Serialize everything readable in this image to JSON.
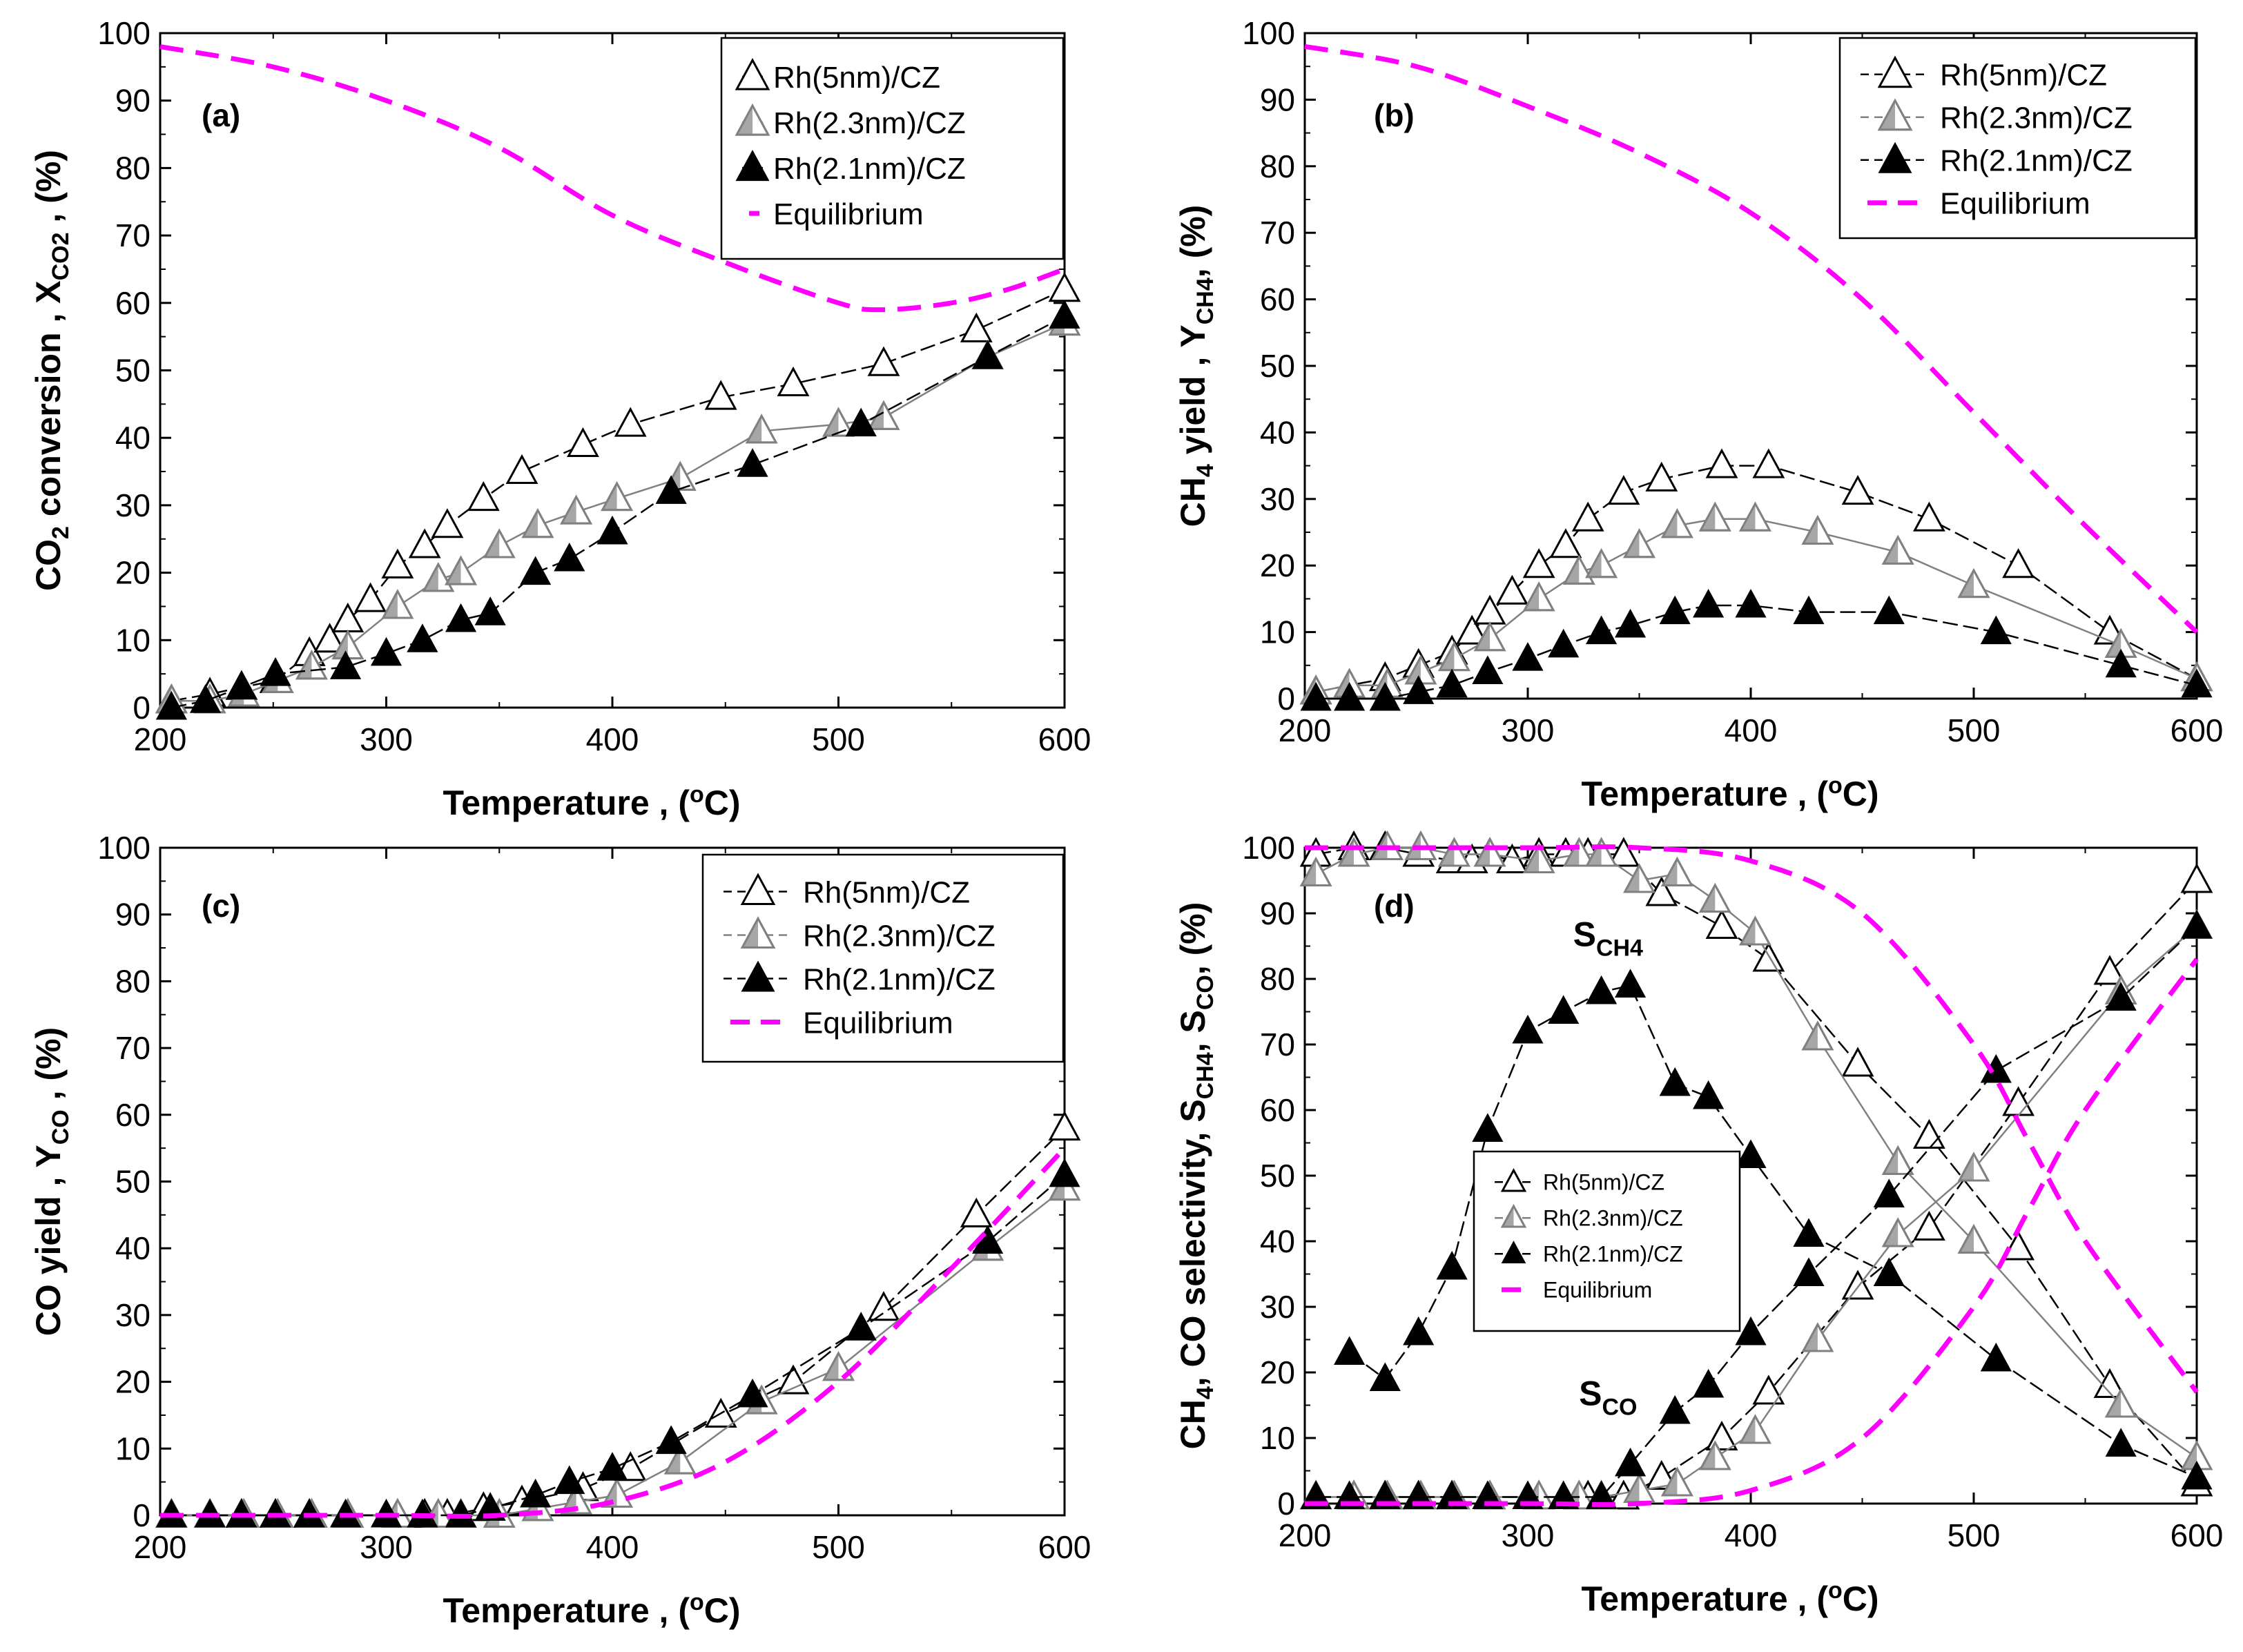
{
  "colors": {
    "equilibrium": "#ff00ff",
    "s5": "#000000",
    "s23": "#808080",
    "s21": "#000000"
  },
  "series_styles": [
    {
      "key": "rh5",
      "marker": "open-triangle",
      "line": "#000000"
    },
    {
      "key": "rh23",
      "marker": "half-triangle",
      "line": "#808080"
    },
    {
      "key": "rh21",
      "marker": "filled-triangle",
      "line": "#000000"
    },
    {
      "key": "eq",
      "marker": "none",
      "line": "#ff00ff"
    }
  ],
  "chart_data": [
    {
      "type": "line",
      "panel_label": "(a)",
      "title": "",
      "xlabel": "Temperature , (",
      "xlabel_unit": "C)",
      "ylabel_main": "CO",
      "ylabel_sub": "2",
      "ylabel_rest": " conversion , X",
      "ylabel_sub2": "CO2",
      "ylabel_end": " , (%)",
      "xlim": [
        200,
        600
      ],
      "ylim": [
        0,
        100
      ],
      "xticks": [
        "200",
        "300",
        "400",
        "500",
        "600"
      ],
      "yticks": [
        "0",
        "10",
        "20",
        "30",
        "40",
        "50",
        "60",
        "70",
        "80",
        "90",
        "100"
      ],
      "legend": [
        "Rh(5nm)/CZ",
        "Rh(2.3nm)/CZ",
        "Rh(2.1nm)/CZ",
        "Equilibrium"
      ],
      "legend_placement": "top-right",
      "series": [
        {
          "name": "Rh(5nm)/CZ",
          "x": [
            205,
            222,
            236,
            251,
            266,
            275,
            283,
            293,
            305,
            317,
            327,
            343,
            360,
            387,
            408,
            448,
            480,
            520,
            561,
            600
          ],
          "y": [
            1,
            2,
            3,
            4,
            8,
            10,
            13,
            16,
            21,
            24,
            27,
            31,
            35,
            39,
            42,
            46,
            48,
            51,
            56,
            62
          ]
        },
        {
          "name": "Rh(2.3nm)/CZ",
          "x": [
            205,
            222,
            237,
            252,
            267,
            283,
            305,
            323,
            333,
            350,
            367,
            384,
            402,
            430,
            466,
            500,
            520,
            566,
            600
          ],
          "y": [
            1,
            1,
            2,
            4,
            6,
            9,
            15,
            19,
            20,
            24,
            27,
            29,
            31,
            34,
            41,
            42,
            43,
            52,
            57
          ]
        },
        {
          "name": "Rh(2.1nm)/CZ",
          "x": [
            205,
            220,
            236,
            251,
            282,
            300,
            316,
            333,
            346,
            366,
            381,
            400,
            426,
            462,
            510,
            566,
            600
          ],
          "y": [
            0,
            1,
            3,
            5,
            6,
            8,
            10,
            13,
            14,
            20,
            22,
            26,
            32,
            36,
            42,
            52,
            58
          ]
        },
        {
          "name": "Equilibrium",
          "x": [
            200,
            250,
            300,
            350,
            400,
            450,
            500,
            520,
            550,
            575,
            600
          ],
          "y": [
            98,
            95,
            90,
            83,
            73,
            66,
            60,
            59,
            60,
            62,
            65
          ]
        }
      ]
    },
    {
      "type": "line",
      "panel_label": "(b)",
      "title": "",
      "xlabel": "Temperature , (",
      "xlabel_unit": "C)",
      "ylabel_main": "CH",
      "ylabel_sub": "4",
      "ylabel_rest": " yield , Y",
      "ylabel_sub2": "CH4",
      "ylabel_end": ", (%)",
      "xlim": [
        200,
        600
      ],
      "ylim": [
        0,
        100
      ],
      "xticks": [
        "200",
        "300",
        "400",
        "500",
        "600"
      ],
      "yticks": [
        "0",
        "10",
        "20",
        "30",
        "40",
        "50",
        "60",
        "70",
        "80",
        "90",
        "100"
      ],
      "legend": [
        "Rh(5nm)/CZ",
        "Rh(2.3nm)/CZ",
        "Rh(2.1nm)/CZ",
        "Equilibrium"
      ],
      "legend_placement": "top-right",
      "series": [
        {
          "name": "Rh(5nm)/CZ",
          "x": [
            205,
            220,
            236,
            251,
            266,
            275,
            283,
            293,
            305,
            317,
            327,
            343,
            360,
            387,
            408,
            448,
            480,
            520,
            561,
            600
          ],
          "y": [
            1,
            2,
            3,
            5,
            7,
            10,
            13,
            16,
            20,
            23,
            27,
            31,
            33,
            35,
            35,
            31,
            27,
            20,
            10,
            3
          ]
        },
        {
          "name": "Rh(2.3nm)/CZ",
          "x": [
            205,
            220,
            237,
            252,
            267,
            283,
            305,
            323,
            333,
            350,
            367,
            384,
            402,
            430,
            466,
            500,
            566,
            600
          ],
          "y": [
            1,
            2,
            2,
            4,
            6,
            9,
            15,
            19,
            20,
            23,
            26,
            27,
            27,
            25,
            22,
            17,
            8,
            3
          ]
        },
        {
          "name": "Rh(2.1nm)/CZ",
          "x": [
            205,
            220,
            236,
            251,
            266,
            282,
            300,
            316,
            333,
            346,
            366,
            381,
            400,
            426,
            462,
            510,
            566,
            600
          ],
          "y": [
            0,
            0,
            0,
            1,
            2,
            4,
            6,
            8,
            10,
            11,
            13,
            14,
            14,
            13,
            13,
            10,
            5,
            2
          ]
        },
        {
          "name": "Equilibrium",
          "x": [
            200,
            250,
            300,
            350,
            400,
            450,
            500,
            550,
            600
          ],
          "y": [
            98,
            95,
            89,
            82,
            73,
            60,
            43,
            26,
            10
          ]
        }
      ]
    },
    {
      "type": "line",
      "panel_label": "(c)",
      "title": "",
      "xlabel": "Temperature , (",
      "xlabel_unit": "C)",
      "ylabel_main": "CO yield , Y",
      "ylabel_sub": "CO",
      "ylabel_rest": " , (%)",
      "xlim": [
        200,
        600
      ],
      "ylim": [
        0,
        100
      ],
      "xticks": [
        "200",
        "300",
        "400",
        "500",
        "600"
      ],
      "yticks": [
        "0",
        "10",
        "20",
        "30",
        "40",
        "50",
        "60",
        "70",
        "80",
        "90",
        "100"
      ],
      "legend": [
        "Rh(5nm)/CZ",
        "Rh(2.3nm)/CZ",
        "Rh(2.1nm)/CZ",
        "Equilibrium"
      ],
      "legend_placement": "top-right",
      "series": [
        {
          "name": "Rh(5nm)/CZ",
          "x": [
            205,
            222,
            236,
            251,
            266,
            283,
            305,
            317,
            327,
            343,
            360,
            387,
            408,
            448,
            480,
            520,
            561,
            600
          ],
          "y": [
            0,
            0,
            0,
            0,
            0,
            0,
            0,
            0,
            0,
            1,
            2,
            4,
            7,
            15,
            20,
            31,
            45,
            58
          ]
        },
        {
          "name": "Rh(2.3nm)/CZ",
          "x": [
            205,
            222,
            237,
            252,
            267,
            283,
            305,
            323,
            333,
            350,
            367,
            384,
            402,
            430,
            466,
            500,
            566,
            600
          ],
          "y": [
            0,
            0,
            0,
            0,
            0,
            0,
            0,
            0,
            0,
            0,
            1,
            2,
            3,
            8,
            17,
            22,
            40,
            49
          ]
        },
        {
          "name": "Rh(2.1nm)/CZ",
          "x": [
            205,
            222,
            236,
            251,
            266,
            282,
            300,
            316,
            333,
            346,
            366,
            381,
            400,
            426,
            462,
            510,
            566,
            600
          ],
          "y": [
            0,
            0,
            0,
            0,
            0,
            0,
            0,
            0,
            0,
            1,
            3,
            5,
            7,
            11,
            18,
            28,
            41,
            51
          ]
        },
        {
          "name": "Equilibrium",
          "x": [
            200,
            300,
            350,
            400,
            450,
            500,
            550,
            600
          ],
          "y": [
            0,
            0,
            0,
            2,
            8,
            20,
            37,
            55
          ]
        }
      ]
    },
    {
      "type": "line",
      "panel_label": "(d)",
      "title": "",
      "xlabel": "Temperature , (",
      "xlabel_unit": "C)",
      "ylabel_main": "CH",
      "ylabel_sub": "4",
      "ylabel_rest": ", CO selectivity, S",
      "ylabel_sub2": "CH4",
      "ylabel_rest2": ", S",
      "ylabel_sub3": "CO",
      "ylabel_end": ", (%)",
      "xlim": [
        200,
        600
      ],
      "ylim": [
        0,
        100
      ],
      "xticks": [
        "200",
        "300",
        "400",
        "500",
        "600"
      ],
      "yticks": [
        "0",
        "10",
        "20",
        "30",
        "40",
        "50",
        "60",
        "70",
        "80",
        "90",
        "100"
      ],
      "annotations": [
        {
          "text": "S",
          "sub": "CH4",
          "x": 336,
          "y": 85
        },
        {
          "text": "S",
          "sub": "CO",
          "x": 336,
          "y": 15
        }
      ],
      "legend": [
        "Rh(5nm)/CZ",
        "Rh(2.3nm)/CZ",
        "Rh(2.1nm)/CZ",
        "Equilibrium"
      ],
      "legend_placement": "center-left",
      "series": [
        {
          "name": "Rh(5nm)/CZ S_CH4",
          "x": [
            205,
            222,
            236,
            251,
            266,
            275,
            283,
            293,
            305,
            317,
            327,
            343,
            360,
            387,
            408,
            448,
            480,
            520,
            561,
            600
          ],
          "y": [
            99,
            100,
            100,
            99,
            98,
            98,
            99,
            98,
            99,
            99,
            99,
            99,
            93,
            88,
            83,
            67,
            56,
            39,
            18,
            3
          ]
        },
        {
          "name": "Rh(2.3nm)/CZ S_CH4",
          "x": [
            205,
            222,
            237,
            252,
            267,
            283,
            305,
            323,
            333,
            350,
            367,
            384,
            402,
            430,
            466,
            500,
            566,
            600
          ],
          "y": [
            96,
            99,
            100,
            100,
            99,
            99,
            98,
            99,
            99,
            95,
            96,
            92,
            87,
            71,
            52,
            40,
            15,
            7
          ]
        },
        {
          "name": "Rh(2.1nm)/CZ S_CH4",
          "x": [
            220,
            236,
            251,
            266,
            282,
            300,
            316,
            333,
            346,
            366,
            381,
            400,
            426,
            462,
            510,
            566,
            600
          ],
          "y": [
            23,
            19,
            26,
            36,
            57,
            72,
            75,
            78,
            79,
            64,
            62,
            53,
            41,
            35,
            22,
            9,
            4
          ]
        },
        {
          "name": "Rh(5nm)/CZ S_CO",
          "x": [
            205,
            222,
            236,
            251,
            266,
            283,
            305,
            327,
            343,
            360,
            387,
            408,
            448,
            480,
            520,
            561,
            600
          ],
          "y": [
            1,
            1,
            1,
            1,
            1,
            1,
            1,
            1,
            1,
            4,
            10,
            17,
            33,
            42,
            61,
            81,
            95
          ]
        },
        {
          "name": "Rh(2.3nm)/CZ S_CO",
          "x": [
            205,
            222,
            237,
            252,
            267,
            283,
            305,
            323,
            333,
            350,
            367,
            384,
            402,
            430,
            466,
            500,
            566,
            600
          ],
          "y": [
            1,
            1,
            1,
            1,
            1,
            1,
            1,
            1,
            1,
            2,
            3,
            7,
            11,
            25,
            41,
            51,
            78,
            88
          ]
        },
        {
          "name": "Rh(2.1nm)/CZ S_CO",
          "x": [
            205,
            220,
            236,
            251,
            266,
            282,
            300,
            316,
            333,
            346,
            366,
            381,
            400,
            426,
            462,
            510,
            566,
            600
          ],
          "y": [
            1,
            1,
            1,
            1,
            1,
            1,
            1,
            1,
            1,
            6,
            14,
            18,
            26,
            35,
            47,
            66,
            77,
            88
          ]
        },
        {
          "name": "Equilibrium S_CH4",
          "x": [
            200,
            300,
            350,
            400,
            450,
            500,
            525,
            550,
            600
          ],
          "y": [
            100,
            100,
            100,
            98,
            90,
            70,
            55,
            40,
            17
          ]
        },
        {
          "name": "Equilibrium S_CO",
          "x": [
            200,
            300,
            350,
            400,
            450,
            500,
            525,
            550,
            600
          ],
          "y": [
            0,
            0,
            0,
            2,
            10,
            30,
            45,
            60,
            83
          ]
        }
      ]
    }
  ]
}
